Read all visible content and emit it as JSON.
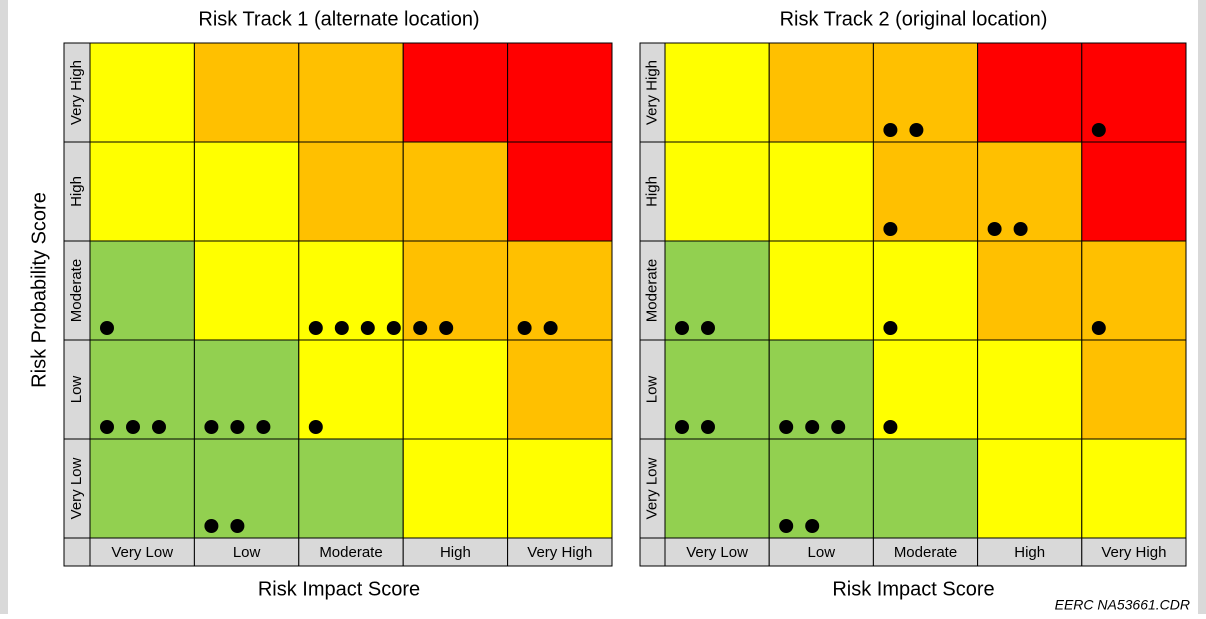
{
  "y_axis_label": "Risk Probability Score",
  "footer": "EERC NA53661.CDR",
  "matrices": [
    {
      "title": "Risk Track 1 (alternate location)",
      "x_axis_label": "Risk Impact Score",
      "rows": [
        "Very High",
        "High",
        "Moderate",
        "Low",
        "Very Low"
      ],
      "columns": [
        "Very Low",
        "Low",
        "Moderate",
        "High",
        "Very High"
      ],
      "colors": [
        [
          "#ffff00",
          "#ffc000",
          "#ffc000",
          "#ff0000",
          "#ff0000"
        ],
        [
          "#ffff00",
          "#ffff00",
          "#ffc000",
          "#ffc000",
          "#ff0000"
        ],
        [
          "#92d050",
          "#ffff00",
          "#ffff00",
          "#ffc000",
          "#ffc000"
        ],
        [
          "#92d050",
          "#92d050",
          "#ffff00",
          "#ffff00",
          "#ffc000"
        ],
        [
          "#92d050",
          "#92d050",
          "#92d050",
          "#ffff00",
          "#ffff00"
        ]
      ],
      "counts": [
        [
          0,
          0,
          0,
          0,
          0
        ],
        [
          0,
          0,
          0,
          0,
          0
        ],
        [
          1,
          0,
          4,
          2,
          2
        ],
        [
          3,
          3,
          1,
          0,
          0
        ],
        [
          0,
          2,
          0,
          0,
          0
        ]
      ]
    },
    {
      "title": "Risk Track 2 (original location)",
      "x_axis_label": "Risk Impact Score",
      "rows": [
        "Very High",
        "High",
        "Moderate",
        "Low",
        "Very Low"
      ],
      "columns": [
        "Very Low",
        "Low",
        "Moderate",
        "High",
        "Very High"
      ],
      "colors": [
        [
          "#ffff00",
          "#ffc000",
          "#ffc000",
          "#ff0000",
          "#ff0000"
        ],
        [
          "#ffff00",
          "#ffff00",
          "#ffc000",
          "#ffc000",
          "#ff0000"
        ],
        [
          "#92d050",
          "#ffff00",
          "#ffff00",
          "#ffc000",
          "#ffc000"
        ],
        [
          "#92d050",
          "#92d050",
          "#ffff00",
          "#ffff00",
          "#ffc000"
        ],
        [
          "#92d050",
          "#92d050",
          "#92d050",
          "#ffff00",
          "#ffff00"
        ]
      ],
      "counts": [
        [
          0,
          0,
          2,
          0,
          1
        ],
        [
          0,
          0,
          1,
          2,
          0
        ],
        [
          2,
          0,
          1,
          0,
          1
        ],
        [
          2,
          3,
          1,
          0,
          0
        ],
        [
          0,
          2,
          0,
          0,
          0
        ]
      ]
    }
  ]
}
